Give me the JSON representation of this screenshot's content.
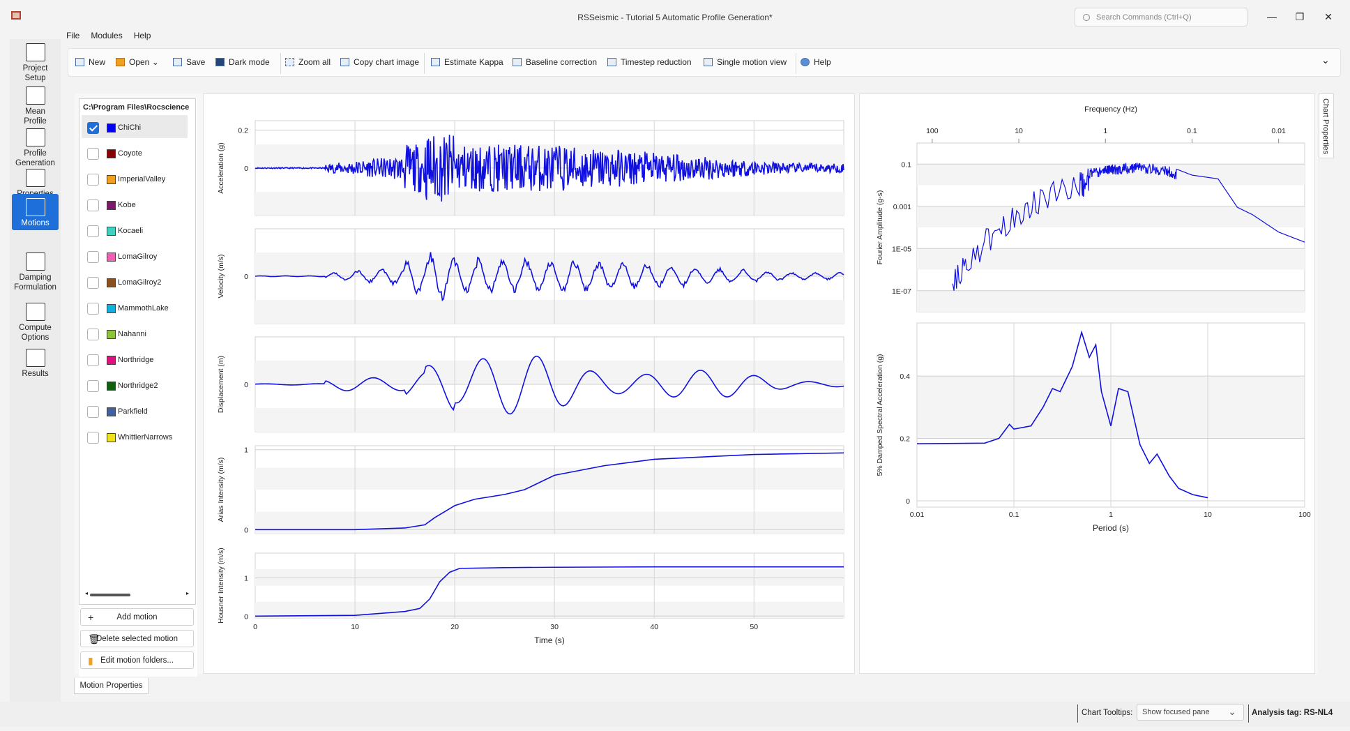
{
  "window": {
    "title": "RSSeismic - Tutorial 5 Automatic Profile Generation*",
    "search_placeholder": "Search Commands (Ctrl+Q)"
  },
  "menu": [
    "File",
    "Modules",
    "Help"
  ],
  "sidebar": [
    {
      "l1": "Project",
      "l2": "Setup",
      "icon": "project-setup-icon"
    },
    {
      "l1": "Mean",
      "l2": "Profile",
      "icon": "mean-profile-icon"
    },
    {
      "l1": "Profile",
      "l2": "Generation",
      "icon": "profile-generation-icon"
    },
    {
      "l1": "Properties",
      "l2": "",
      "icon": "properties-icon"
    },
    {
      "l1": "Motions",
      "l2": "",
      "icon": "motions-icon",
      "active": true
    },
    {
      "l1": "Damping",
      "l2": "Formulation",
      "icon": "damping-icon"
    },
    {
      "l1": "Compute",
      "l2": "Options",
      "icon": "compute-options-icon"
    },
    {
      "l1": "Results",
      "l2": "",
      "icon": "results-icon"
    }
  ],
  "toolbar": {
    "new": "New",
    "open": "Open",
    "save": "Save",
    "dark_mode": "Dark mode",
    "zoom_all": "Zoom all",
    "copy_chart": "Copy chart image",
    "kappa": "Estimate Kappa",
    "baseline": "Baseline correction",
    "timestep": "Timestep reduction",
    "single_view": "Single motion view",
    "help": "Help"
  },
  "motions": {
    "path": "C:\\Program Files\\Rocscience",
    "items": [
      {
        "name": "ChiChi",
        "color": "#0000ee",
        "checked": true
      },
      {
        "name": "Coyote",
        "color": "#8b0000",
        "checked": false
      },
      {
        "name": "ImperialValley",
        "color": "#f0a020",
        "checked": false
      },
      {
        "name": "Kobe",
        "color": "#7a1a6a",
        "checked": false
      },
      {
        "name": "Kocaeli",
        "color": "#40d0c0",
        "checked": false
      },
      {
        "name": "LomaGilroy",
        "color": "#f060b0",
        "checked": false
      },
      {
        "name": "LomaGilroy2",
        "color": "#8b5020",
        "checked": false
      },
      {
        "name": "MammothLake",
        "color": "#10b0e0",
        "checked": false
      },
      {
        "name": "Nahanni",
        "color": "#90c040",
        "checked": false
      },
      {
        "name": "Northridge",
        "color": "#e01080",
        "checked": false
      },
      {
        "name": "Northridge2",
        "color": "#106010",
        "checked": false
      },
      {
        "name": "Parkfield",
        "color": "#4060a0",
        "checked": false
      },
      {
        "name": "WhittierNarrows",
        "color": "#f0e020",
        "checked": false
      }
    ],
    "add": "Add motion",
    "delete": "Delete selected motion",
    "edit": "Edit motion folders...",
    "tab": "Motion Properties"
  },
  "chart_data": [
    {
      "type": "line",
      "ylabel": "Acceleration (g)",
      "xlim": [
        0,
        59
      ],
      "ylim": [
        -0.25,
        0.25
      ],
      "yticks": [
        0,
        0.2
      ],
      "ytick_labels": [
        "0",
        "0.2"
      ]
    },
    {
      "type": "line",
      "ylabel": "Velocity (m/s)",
      "xlim": [
        0,
        59
      ],
      "ylim": [
        -1,
        1
      ],
      "yticks": [
        0
      ],
      "ytick_labels": [
        "0"
      ]
    },
    {
      "type": "line",
      "ylabel": "Displacement (m)",
      "xlim": [
        0,
        59
      ],
      "ylim": [
        -1,
        1
      ],
      "yticks": [
        0
      ],
      "ytick_labels": [
        "0"
      ]
    },
    {
      "type": "line",
      "ylabel": "Arias Intensity (m/s)",
      "xlim": [
        0,
        59
      ],
      "ylim": [
        -0.05,
        1.05
      ],
      "yticks": [
        0,
        1
      ],
      "ytick_labels": [
        "0",
        "1"
      ],
      "x": [
        0,
        10,
        15,
        17,
        18,
        20,
        22,
        25,
        27,
        30,
        35,
        40,
        50,
        59
      ],
      "y": [
        0,
        0,
        0.02,
        0.06,
        0.15,
        0.3,
        0.38,
        0.44,
        0.5,
        0.68,
        0.8,
        0.88,
        0.94,
        0.96
      ]
    },
    {
      "type": "line",
      "ylabel": "Housner Intensity (m/s)",
      "xlabel": "Time (s)",
      "xlim": [
        0,
        59
      ],
      "ylim": [
        -0.05,
        1.65
      ],
      "yticks": [
        0,
        1
      ],
      "ytick_labels": [
        "0",
        "1"
      ],
      "xticks": [
        0,
        10,
        20,
        30,
        40,
        50
      ],
      "xtick_labels": [
        "0",
        "10",
        "20",
        "30",
        "40",
        "50"
      ],
      "x": [
        0,
        10,
        15,
        16.5,
        17.5,
        18.5,
        19.5,
        20.5,
        25,
        30,
        40,
        59
      ],
      "y": [
        0,
        0.02,
        0.12,
        0.2,
        0.45,
        0.9,
        1.15,
        1.25,
        1.27,
        1.28,
        1.29,
        1.29
      ]
    },
    {
      "type": "line",
      "ylabel": "Fourier Amplitude (g-s)",
      "xlabel": "Frequency (Hz)",
      "xscale": "log-reversed",
      "xlim": [
        0.005,
        150
      ],
      "ylim": [
        1e-08,
        1
      ],
      "xticks": [
        100,
        10,
        1,
        0.1,
        0.01
      ],
      "xtick_labels": [
        "100",
        "10",
        "1",
        "0.1",
        "0.01"
      ],
      "yticks": [
        0.1,
        0.001,
        1e-05,
        1e-07
      ],
      "ytick_labels": [
        "0.1",
        "0.001",
        "1E-05",
        "1E-07"
      ],
      "x": [
        0.005,
        0.01,
        0.02,
        0.03,
        0.05,
        0.1,
        0.2,
        0.4,
        0.7,
        1,
        2,
        5,
        10,
        20,
        40,
        60
      ],
      "y": [
        2e-05,
        6e-05,
        0.0004,
        0.0009,
        0.02,
        0.03,
        0.09,
        0.12,
        0.1,
        0.09,
        0.05,
        0.01,
        0.002,
        0.0002,
        8e-06,
        8e-07
      ]
    },
    {
      "type": "line",
      "ylabel": "5% Damped Spectral Acceleration (g)",
      "xlabel": "Period (s)",
      "xscale": "log",
      "xlim": [
        0.01,
        100
      ],
      "ylim": [
        -0.02,
        0.57
      ],
      "xticks": [
        0.01,
        0.1,
        1,
        10,
        100
      ],
      "xtick_labels": [
        "0.01",
        "0.1",
        "1",
        "10",
        "100"
      ],
      "yticks": [
        0,
        0.2,
        0.4
      ],
      "ytick_labels": [
        "0",
        "0.2",
        "0.4"
      ],
      "x": [
        0.01,
        0.05,
        0.07,
        0.09,
        0.1,
        0.15,
        0.2,
        0.25,
        0.3,
        0.4,
        0.5,
        0.6,
        0.7,
        0.8,
        1,
        1.2,
        1.5,
        2,
        2.5,
        3,
        4,
        5,
        7,
        10
      ],
      "y": [
        0.183,
        0.185,
        0.2,
        0.245,
        0.23,
        0.24,
        0.3,
        0.36,
        0.35,
        0.43,
        0.54,
        0.46,
        0.5,
        0.35,
        0.24,
        0.36,
        0.35,
        0.18,
        0.12,
        0.15,
        0.08,
        0.04,
        0.02,
        0.01
      ]
    }
  ],
  "status": {
    "tooltips_label": "Chart Tooltips:",
    "tooltips_value": "Show focused pane",
    "analysis_tag": "Analysis tag: RS-NL4"
  },
  "chart_properties_tab": "Chart Properties"
}
